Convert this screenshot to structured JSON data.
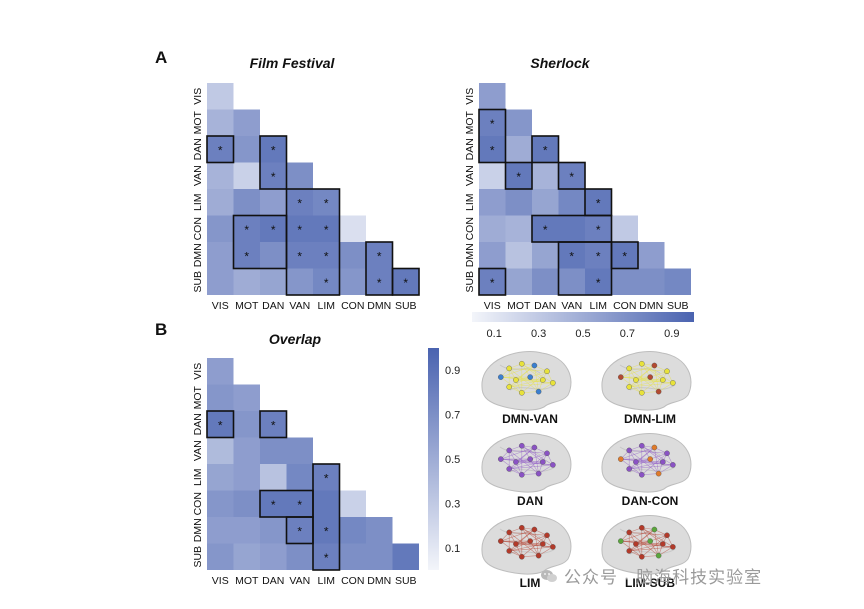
{
  "panel_letters": {
    "a": "A",
    "b": "B"
  },
  "labels": [
    "VIS",
    "MOT",
    "DAN",
    "VAN",
    "LIM",
    "CON",
    "DMN",
    "SUB"
  ],
  "colorbar_ticks": [
    "0.1",
    "0.3",
    "0.5",
    "0.7",
    "0.9"
  ],
  "colors": {
    "low": "#f3f5fa",
    "high": "#4a63b0",
    "box": "#111111"
  },
  "chart_data": [
    {
      "type": "heatmap",
      "title": "Film Festival",
      "rows": [
        "VIS",
        "MOT",
        "DAN",
        "VAN",
        "LIM",
        "CON",
        "DMN",
        "SUB"
      ],
      "cols": [
        "VIS",
        "MOT",
        "DAN",
        "VAN",
        "LIM",
        "CON",
        "DMN",
        "SUB"
      ],
      "values": [
        [
          0.3
        ],
        [
          0.45,
          0.6
        ],
        [
          0.8,
          0.65,
          0.85
        ],
        [
          0.45,
          0.25,
          0.8,
          0.7
        ],
        [
          0.5,
          0.7,
          0.6,
          0.8,
          0.75
        ],
        [
          0.65,
          0.8,
          0.85,
          0.85,
          0.85,
          0.15
        ],
        [
          0.6,
          0.8,
          0.7,
          0.8,
          0.8,
          0.7,
          0.8
        ],
        [
          0.6,
          0.5,
          0.55,
          0.65,
          0.75,
          0.65,
          0.8,
          0.85
        ]
      ],
      "significant": [
        [
          2,
          0
        ],
        [
          2,
          2
        ],
        [
          3,
          2
        ],
        [
          4,
          3
        ],
        [
          4,
          4
        ],
        [
          5,
          1
        ],
        [
          5,
          2
        ],
        [
          5,
          3
        ],
        [
          5,
          4
        ],
        [
          6,
          1
        ],
        [
          6,
          3
        ],
        [
          6,
          4
        ],
        [
          6,
          6
        ],
        [
          7,
          4
        ],
        [
          7,
          6
        ],
        [
          7,
          7
        ]
      ],
      "boxes": [
        {
          "r0": 2,
          "c0": 0,
          "r1": 2,
          "c1": 0
        },
        {
          "r0": 2,
          "c0": 2,
          "r1": 3,
          "c1": 2
        },
        {
          "r0": 4,
          "c0": 3,
          "r1": 7,
          "c1": 4
        },
        {
          "r0": 5,
          "c0": 1,
          "r1": 6,
          "c1": 2
        },
        {
          "r0": 6,
          "c0": 6,
          "r1": 7,
          "c1": 6
        },
        {
          "r0": 7,
          "c0": 7,
          "r1": 7,
          "c1": 7
        }
      ],
      "colorbar": {
        "range": [
          0,
          1
        ],
        "ticks": [
          0.1,
          0.3,
          0.5,
          0.7,
          0.9
        ],
        "orientation": "horizontal"
      }
    },
    {
      "type": "heatmap",
      "title": "Sherlock",
      "rows": [
        "VIS",
        "MOT",
        "DAN",
        "VAN",
        "LIM",
        "CON",
        "DMN",
        "SUB"
      ],
      "cols": [
        "VIS",
        "MOT",
        "DAN",
        "VAN",
        "LIM",
        "CON",
        "DMN",
        "SUB"
      ],
      "values": [
        [
          0.6
        ],
        [
          0.8,
          0.65
        ],
        [
          0.85,
          0.5,
          0.85
        ],
        [
          0.25,
          0.85,
          0.45,
          0.8
        ],
        [
          0.6,
          0.7,
          0.55,
          0.75,
          0.85
        ],
        [
          0.5,
          0.45,
          0.85,
          0.85,
          0.8,
          0.3
        ],
        [
          0.6,
          0.35,
          0.55,
          0.85,
          0.8,
          0.85,
          0.6
        ],
        [
          0.8,
          0.55,
          0.7,
          0.7,
          0.85,
          0.7,
          0.7,
          0.75
        ]
      ],
      "significant": [
        [
          1,
          0
        ],
        [
          2,
          0
        ],
        [
          2,
          2
        ],
        [
          3,
          1
        ],
        [
          3,
          3
        ],
        [
          4,
          4
        ],
        [
          5,
          2
        ],
        [
          5,
          4
        ],
        [
          6,
          3
        ],
        [
          6,
          4
        ],
        [
          6,
          5
        ],
        [
          7,
          0
        ],
        [
          7,
          4
        ]
      ],
      "boxes": [
        {
          "r0": 1,
          "c0": 0,
          "r1": 2,
          "c1": 0
        },
        {
          "r0": 2,
          "c0": 2,
          "r1": 2,
          "c1": 2
        },
        {
          "r0": 3,
          "c0": 1,
          "r1": 3,
          "c1": 1
        },
        {
          "r0": 3,
          "c0": 3,
          "r1": 3,
          "c1": 3
        },
        {
          "r0": 4,
          "c0": 4,
          "r1": 4,
          "c1": 4
        },
        {
          "r0": 5,
          "c0": 2,
          "r1": 5,
          "c1": 4
        },
        {
          "r0": 6,
          "c0": 3,
          "r1": 7,
          "c1": 4
        },
        {
          "r0": 6,
          "c0": 5,
          "r1": 6,
          "c1": 5
        },
        {
          "r0": 7,
          "c0": 0,
          "r1": 7,
          "c1": 0
        }
      ],
      "colorbar": {
        "range": [
          0,
          1
        ],
        "ticks": [
          0.1,
          0.3,
          0.5,
          0.7,
          0.9
        ],
        "orientation": "horizontal"
      }
    },
    {
      "type": "heatmap",
      "title": "Overlap",
      "rows": [
        "VIS",
        "MOT",
        "DAN",
        "VAN",
        "LIM",
        "CON",
        "DMN",
        "SUB"
      ],
      "cols": [
        "VIS",
        "MOT",
        "DAN",
        "VAN",
        "LIM",
        "CON",
        "DMN",
        "SUB"
      ],
      "values": [
        [
          0.6
        ],
        [
          0.65,
          0.6
        ],
        [
          0.85,
          0.65,
          0.8
        ],
        [
          0.4,
          0.6,
          0.7,
          0.7
        ],
        [
          0.55,
          0.6,
          0.35,
          0.75,
          0.8
        ],
        [
          0.65,
          0.7,
          0.85,
          0.85,
          0.85,
          0.25
        ],
        [
          0.6,
          0.6,
          0.65,
          0.8,
          0.85,
          0.75,
          0.7
        ],
        [
          0.65,
          0.55,
          0.6,
          0.7,
          0.8,
          0.7,
          0.7,
          0.85
        ]
      ],
      "significant": [
        [
          2,
          0
        ],
        [
          2,
          2
        ],
        [
          4,
          4
        ],
        [
          5,
          2
        ],
        [
          5,
          3
        ],
        [
          6,
          3
        ],
        [
          6,
          4
        ],
        [
          7,
          4
        ]
      ],
      "boxes": [
        {
          "r0": 2,
          "c0": 0,
          "r1": 2,
          "c1": 0
        },
        {
          "r0": 2,
          "c0": 2,
          "r1": 2,
          "c1": 2
        },
        {
          "r0": 4,
          "c0": 4,
          "r1": 7,
          "c1": 4
        },
        {
          "r0": 5,
          "c0": 2,
          "r1": 5,
          "c1": 3
        },
        {
          "r0": 6,
          "c0": 3,
          "r1": 6,
          "c1": 3
        }
      ],
      "colorbar": {
        "range": [
          0,
          1
        ],
        "ticks": [
          0.1,
          0.3,
          0.5,
          0.7,
          0.9
        ],
        "orientation": "vertical"
      }
    }
  ],
  "brain_panels": [
    {
      "label": "DMN-VAN",
      "accent": "#3a7fd0",
      "base": "#e8e23a"
    },
    {
      "label": "DMN-LIM",
      "accent": "#b34a30",
      "base": "#e8e23a"
    },
    {
      "label": "DAN",
      "accent": "#8a52c4",
      "base": "#8a52c4"
    },
    {
      "label": "DAN-CON",
      "accent": "#e07a2a",
      "base": "#8a52c4"
    },
    {
      "label": "LIM",
      "accent": "#b33a2a",
      "base": "#b33a2a"
    },
    {
      "label": "LIM-SUB",
      "accent": "#5aa63c",
      "base": "#b33a2a"
    }
  ],
  "watermark": "公众号 · 脑海科技实验室"
}
